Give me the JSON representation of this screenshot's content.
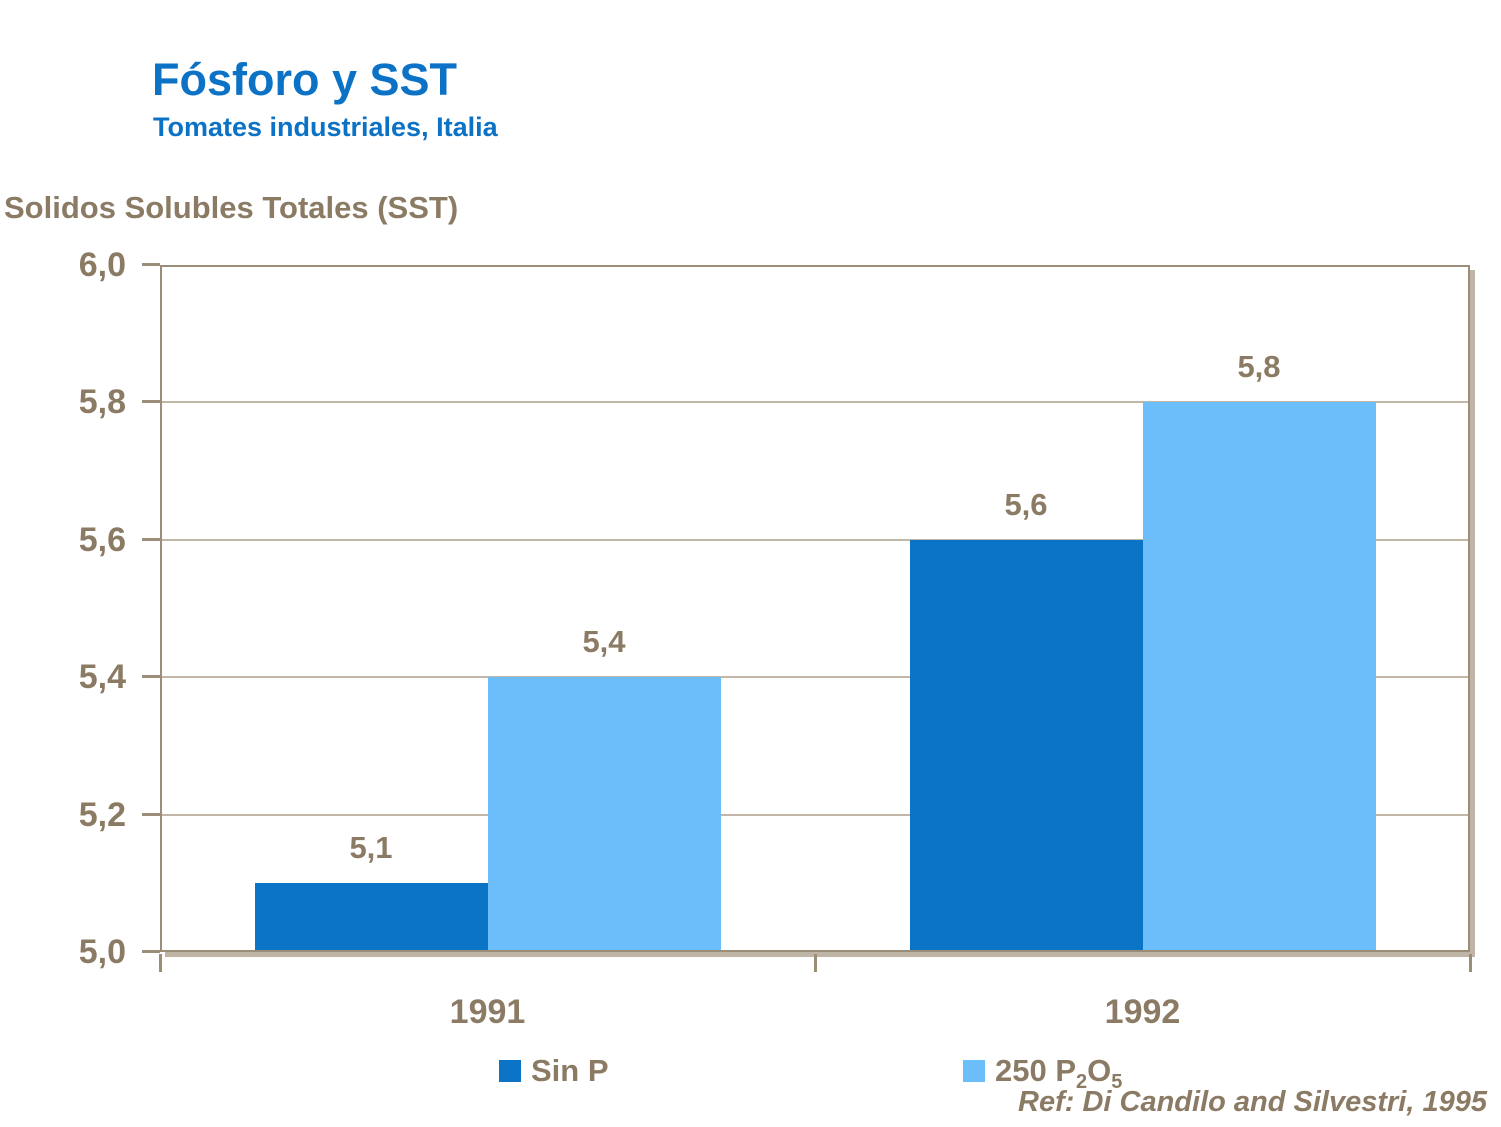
{
  "header": {
    "title": "Fósforo y SST",
    "subtitle": "Tomates industriales, Italia"
  },
  "footer": {
    "reference": "Ref: Di Candilo and Silvestri, 1995"
  },
  "colors": {
    "accent_blue": "#0B72C6",
    "text_brown": "#8B7B64",
    "frame_taupe": "#9C8D79",
    "gridline_taupe": "#C2B7A6",
    "series_dark_blue": "#0B74C7",
    "series_light_blue": "#6BBEF9"
  },
  "chart_data": {
    "type": "bar",
    "title": "Fósforo y SST",
    "subtitle": "Tomates industriales, Italia",
    "xlabel": "",
    "ylabel": "Solidos Solubles Totales (SST)",
    "categories": [
      "1991",
      "1992"
    ],
    "series": [
      {
        "name": "Sin P",
        "color": "#0B74C7",
        "values": [
          5.1,
          5.6
        ],
        "value_labels": [
          "5,1",
          "5,6"
        ],
        "legend_parts": [
          [
            "Sin P",
            false
          ]
        ]
      },
      {
        "name": "250 P2O5",
        "color": "#6BBEF9",
        "values": [
          5.4,
          5.8
        ],
        "value_labels": [
          "5,4",
          "5,8"
        ],
        "legend_parts": [
          [
            "250 P",
            false
          ],
          [
            "2",
            true
          ],
          [
            "O",
            false
          ],
          [
            "5",
            true
          ]
        ]
      }
    ],
    "ylim": [
      5.0,
      6.0
    ],
    "yticks": [
      {
        "v": 6.0,
        "label": "6,0"
      },
      {
        "v": 5.8,
        "label": "5,8"
      },
      {
        "v": 5.6,
        "label": "5,6"
      },
      {
        "v": 5.4,
        "label": "5,4"
      },
      {
        "v": 5.2,
        "label": "5,2"
      },
      {
        "v": 5.0,
        "label": "5,0"
      }
    ],
    "grid": true,
    "legend_position": "bottom",
    "decimal_separator": ","
  }
}
